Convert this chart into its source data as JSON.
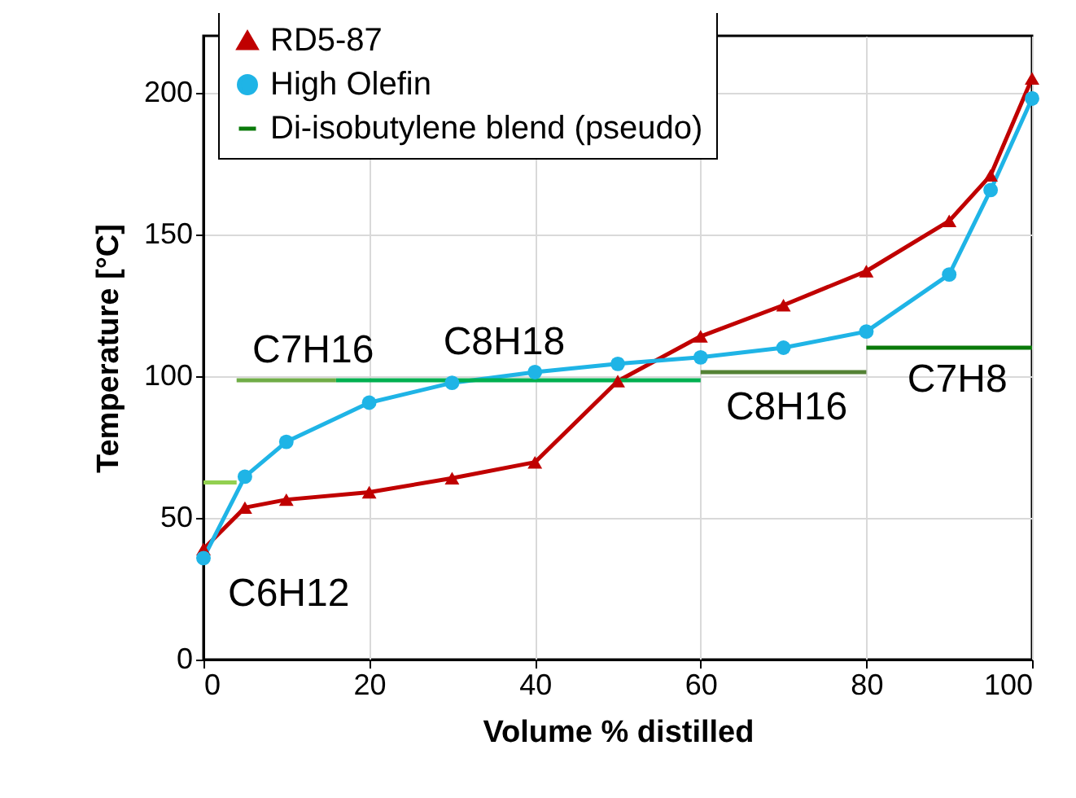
{
  "chart_data": {
    "type": "line",
    "xlabel": "Volume % distilled",
    "ylabel": "Temperature [°C]",
    "xlim": [
      0,
      100
    ],
    "xticks": [
      0,
      20,
      40,
      60,
      80,
      100
    ],
    "ylim": [
      0,
      220
    ],
    "yticks": [
      0,
      50,
      100,
      150,
      200
    ],
    "grid": true,
    "legend": "top left",
    "line_style": "solid",
    "series": [
      {
        "name": "RD5-87",
        "color": "#c00000",
        "marker": "triangle",
        "x": [
          0,
          5,
          10,
          20,
          30,
          40,
          50,
          60,
          70,
          80,
          90,
          95,
          100
        ],
        "values": [
          39,
          53.6,
          56.4,
          59,
          64,
          69.6,
          98.2,
          114,
          125,
          137,
          154.7,
          170.8,
          205
        ]
      },
      {
        "name": "High Olefin",
        "color": "#1fb4e6",
        "marker": "circle",
        "x": [
          0,
          5,
          10,
          20,
          30,
          40,
          50,
          60,
          70,
          80,
          90,
          95,
          100
        ],
        "values": [
          35.8,
          64.5,
          76.8,
          90.6,
          97.6,
          101.4,
          104.3,
          106.6,
          110,
          115.7,
          135.8,
          165.6,
          197.9
        ]
      },
      {
        "name": "Di-isobutylene blend (pseudo)",
        "color": "#0a7a0a",
        "marker": "none",
        "x": [
          80,
          100
        ],
        "values": [
          110,
          110
        ]
      },
      {
        "color": "#92d050",
        "marker": "none",
        "x": [
          0,
          4
        ],
        "values": [
          62.5,
          62.5
        ]
      },
      {
        "color": "#70ad47",
        "marker": "none",
        "x": [
          4,
          16
        ],
        "values": [
          98.5,
          98.5
        ]
      },
      {
        "color": "#00b050",
        "marker": "none",
        "x": [
          16,
          60
        ],
        "values": [
          98.5,
          98.5
        ]
      },
      {
        "color": "#548235",
        "marker": "none",
        "x": [
          60,
          80
        ],
        "values": [
          101.4,
          101.4
        ]
      }
    ],
    "annotations": [
      {
        "text": "C6H12",
        "x": 4,
        "y": 62.5
      },
      {
        "text": "C7H16",
        "x": 4,
        "y": 98.5
      },
      {
        "text": "C8H18",
        "x": 30,
        "y": 98.5
      },
      {
        "text": "C8H16",
        "x": 70,
        "y": 101.4
      },
      {
        "text": "C7H8",
        "x": 90,
        "y": 110
      }
    ]
  }
}
